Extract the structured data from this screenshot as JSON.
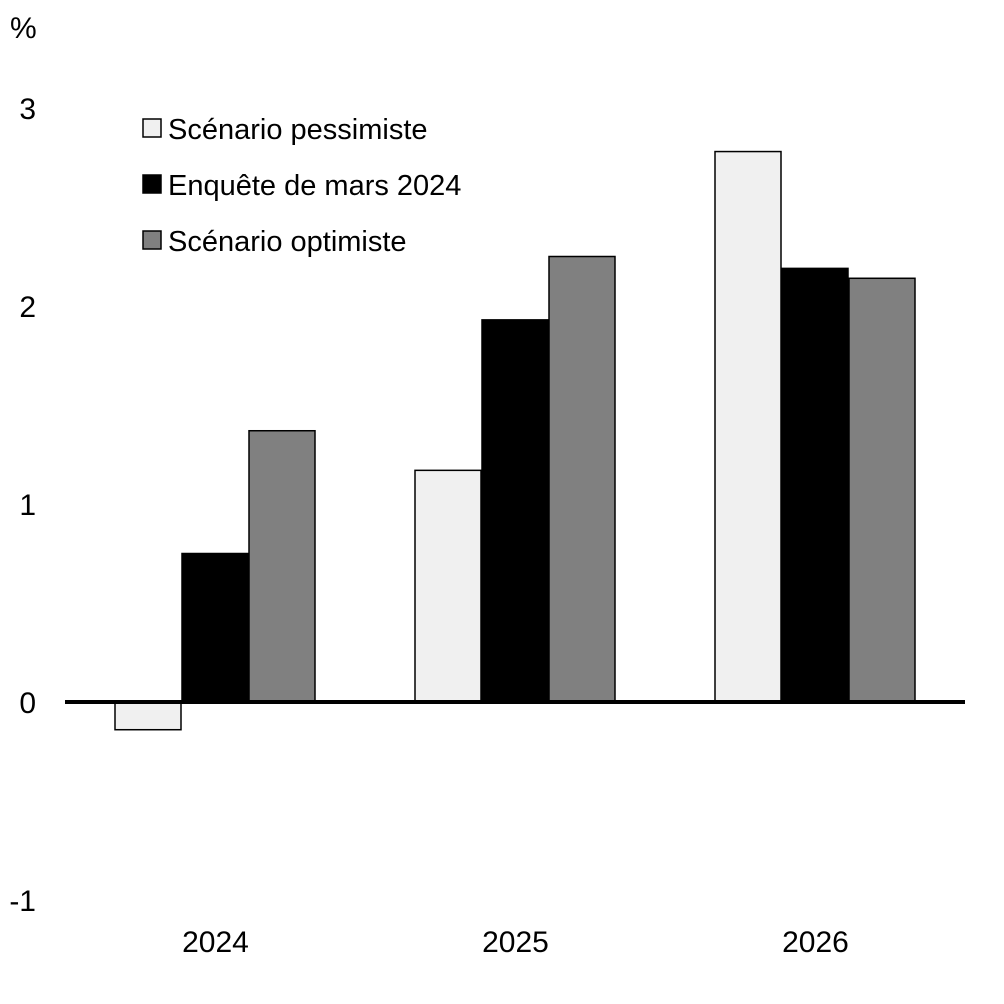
{
  "chart_data": {
    "type": "bar",
    "ylabel": "%",
    "ylim": [
      -1,
      3
    ],
    "yticks": [
      3,
      2,
      1,
      0,
      -1
    ],
    "ytick_labels": [
      "3",
      "2",
      "1",
      "0",
      "-1"
    ],
    "categories": [
      "2024",
      "2025",
      "2026"
    ],
    "grid": false,
    "legend_position": "top-left",
    "series": [
      {
        "name": "Scénario pessimiste",
        "color": "#f0f0f0",
        "values": [
          -0.14,
          1.17,
          2.78
        ]
      },
      {
        "name": "Enquête de mars 2024",
        "color": "#000000",
        "values": [
          0.75,
          1.93,
          2.19
        ]
      },
      {
        "name": "Scénario optimiste",
        "color": "#808080",
        "values": [
          1.37,
          2.25,
          2.14
        ]
      }
    ]
  }
}
